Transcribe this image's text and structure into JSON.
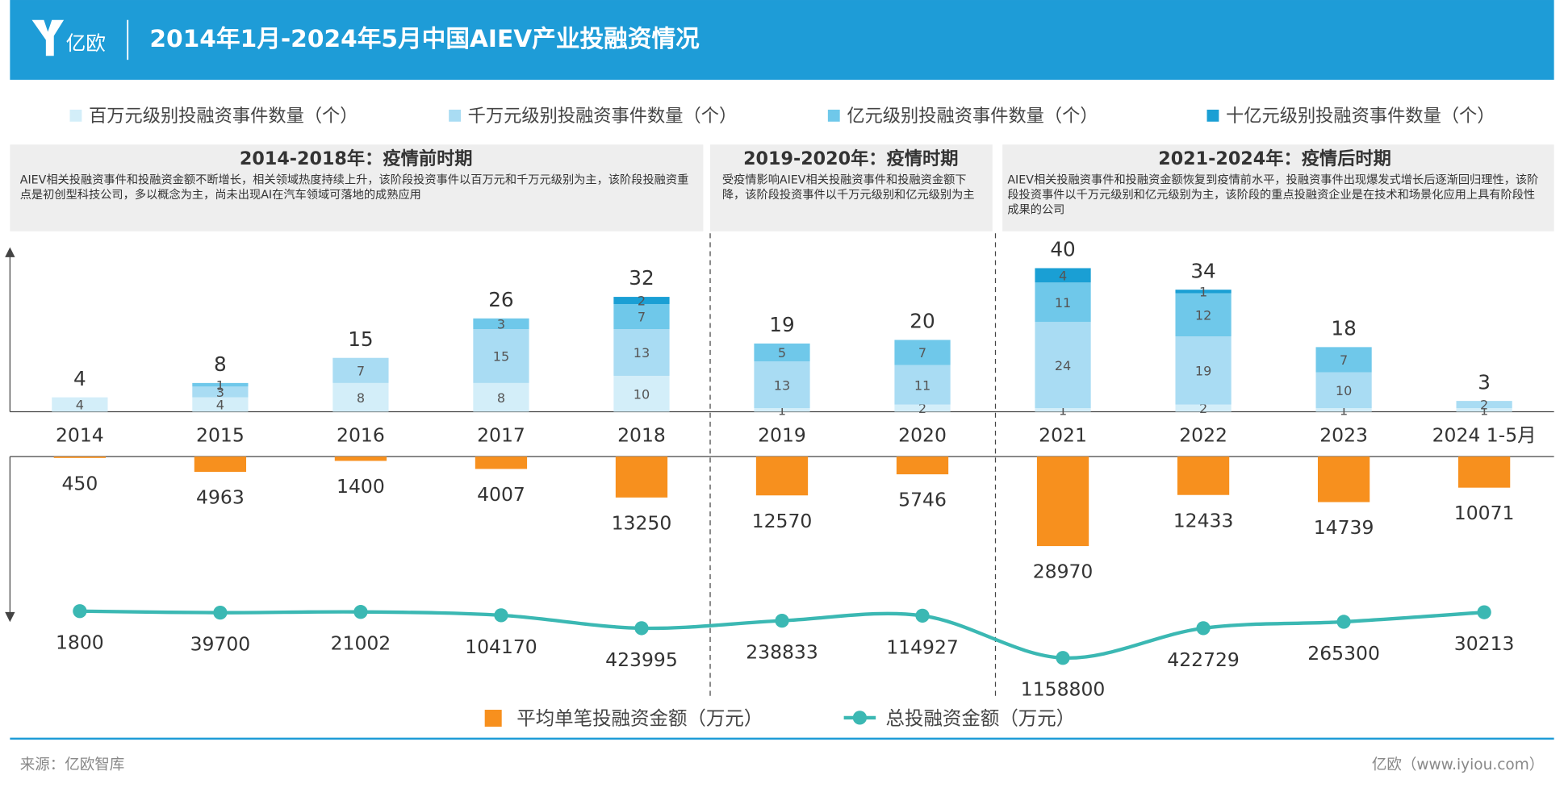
{
  "header": {
    "logo": "亿欧",
    "title": "2014年1月-2024年5月中国AIEV产业投融资情况"
  },
  "periods": [
    {
      "title": "2014-2018年：疫情前时期",
      "text": "AIEV相关投融资事件和投融资金额不断增长，相关领域热度持续上升，该阶段投资事件以百万元和千万元级别为主，该阶段投融资重点是初创型科技公司，多以概念为主，尚未出现AI在汽车领域可落地的成熟应用"
    },
    {
      "title": "2019-2020年：疫情时期",
      "text": "受疫情影响AIEV相关投融资事件和投融资金额下降，该阶段投资事件以千万元级别和亿元级别为主"
    },
    {
      "title": "2021-2024年：疫情后时期",
      "text": "AIEV相关投融资事件和投融资金额恢复到疫情前水平，投融资事件出现爆发式增长后逐渐回归理性，该阶段投资事件以千万元级别和亿元级别为主，该阶段的重点投融资企业是在技术和场景化应用上具有阶段性成果的公司"
    }
  ],
  "chart_data": [
    {
      "type": "bar",
      "stacked": true,
      "categories": [
        "2014",
        "2015",
        "2016",
        "2017",
        "2018",
        "2019",
        "2020",
        "2021",
        "2022",
        "2023",
        "2024 1-5月"
      ],
      "series": [
        {
          "name": "百万元级别投融资事件数量（个）",
          "color": "#d3eef9",
          "values": [
            4,
            4,
            8,
            8,
            10,
            1,
            2,
            1,
            2,
            1,
            1
          ]
        },
        {
          "name": "千万元级别投融资事件数量（个）",
          "color": "#a9dcf3",
          "values": [
            null,
            3,
            7,
            15,
            13,
            13,
            11,
            24,
            19,
            10,
            2
          ]
        },
        {
          "name": "亿元级别投融资事件数量（个）",
          "color": "#6fc8ea",
          "values": [
            null,
            1,
            null,
            3,
            7,
            5,
            7,
            11,
            12,
            7,
            null
          ]
        },
        {
          "name": "十亿元级别投融资事件数量（个）",
          "color": "#1a9fd4",
          "values": [
            null,
            null,
            null,
            null,
            2,
            null,
            null,
            4,
            1,
            null,
            null
          ]
        }
      ],
      "totals": [
        4,
        8,
        15,
        26,
        32,
        19,
        20,
        40,
        34,
        18,
        3
      ]
    },
    {
      "type": "bar",
      "inverted": true,
      "series": [
        {
          "name": "平均单笔投融资金额（万元）",
          "color": "#f7901e",
          "values": [
            450,
            4963,
            1400,
            4007,
            13250,
            12570,
            5746,
            28970,
            12433,
            14739,
            10071
          ]
        }
      ]
    },
    {
      "type": "line",
      "series": [
        {
          "name": "总投融资金额（万元）",
          "color": "#3bb8b3",
          "values": [
            1800,
            39700,
            21002,
            104170,
            423995,
            238833,
            114927,
            1158800,
            422729,
            265300,
            30213
          ]
        }
      ]
    }
  ],
  "footer": {
    "source": "来源：亿欧智库",
    "site": "亿欧（www.iyiou.com）"
  }
}
